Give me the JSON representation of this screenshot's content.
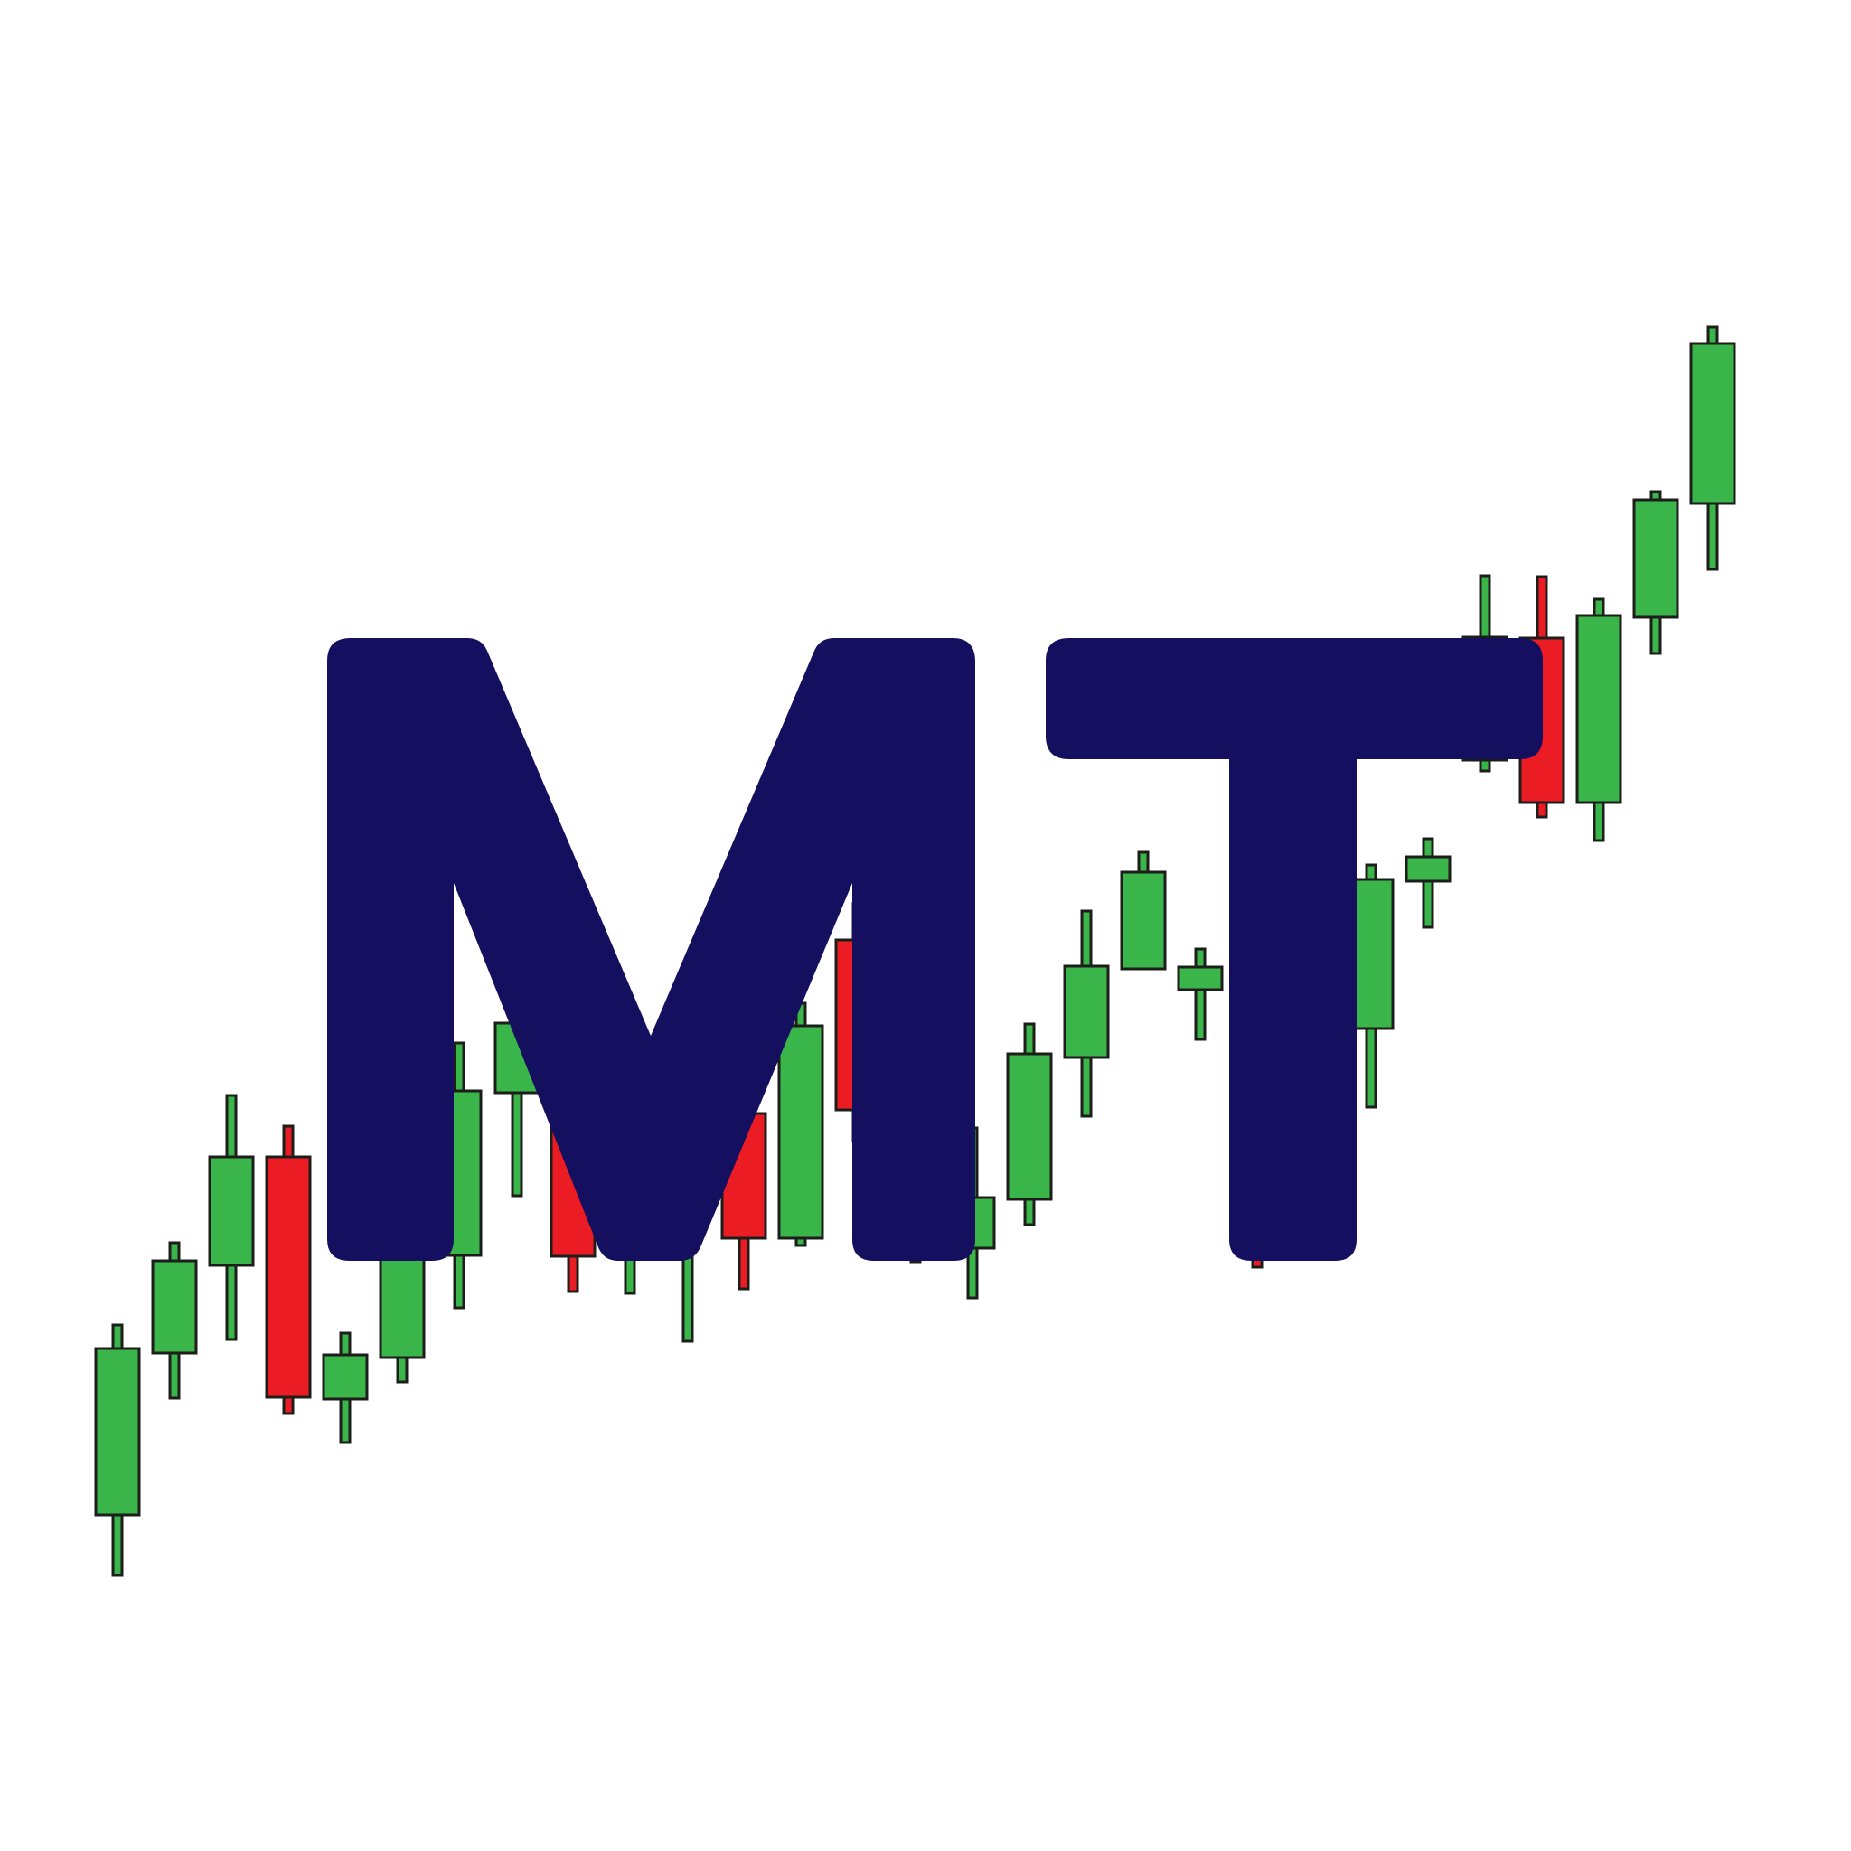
{
  "logo": {
    "lettering": "MT",
    "letter_color": "#140f5e",
    "background_color": "#ffffff"
  },
  "candlesticks": {
    "trend": "upward",
    "up_color": "#3ab54a",
    "down_color": "#ec1c24",
    "outline_color": "#1d1d1b",
    "candles": [
      {
        "direction": "up"
      },
      {
        "direction": "up"
      },
      {
        "direction": "up"
      },
      {
        "direction": "down"
      },
      {
        "direction": "up"
      },
      {
        "direction": "up"
      },
      {
        "direction": "up"
      },
      {
        "direction": "up"
      },
      {
        "direction": "down"
      },
      {
        "direction": "up"
      },
      {
        "direction": "up"
      },
      {
        "direction": "down"
      },
      {
        "direction": "up"
      },
      {
        "direction": "down"
      },
      {
        "direction": "down"
      },
      {
        "direction": "up"
      },
      {
        "direction": "up"
      },
      {
        "direction": "up"
      },
      {
        "direction": "up"
      },
      {
        "direction": "up"
      },
      {
        "direction": "down"
      },
      {
        "direction": "up"
      },
      {
        "direction": "up"
      },
      {
        "direction": "up"
      },
      {
        "direction": "up"
      },
      {
        "direction": "down"
      },
      {
        "direction": "up"
      },
      {
        "direction": "up"
      },
      {
        "direction": "up"
      }
    ]
  }
}
